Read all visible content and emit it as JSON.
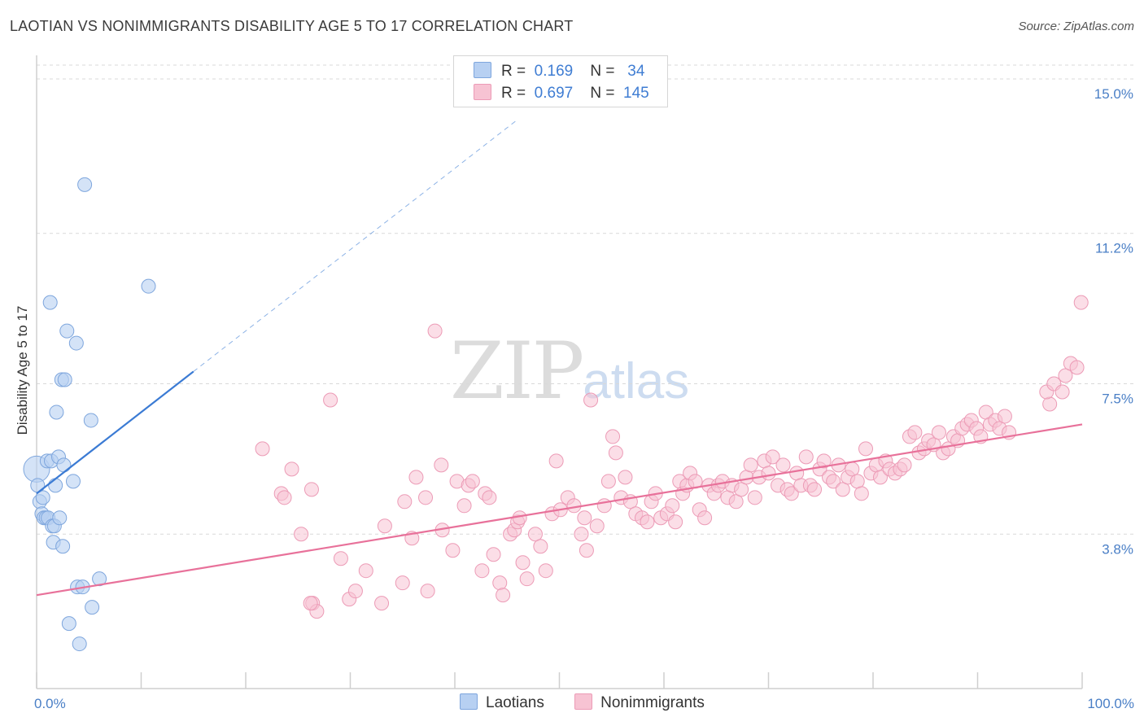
{
  "title": "LAOTIAN VS NONIMMIGRANTS DISABILITY AGE 5 TO 17 CORRELATION CHART",
  "source": "Source: ZipAtlas.com",
  "watermark": {
    "zip": "ZIP",
    "atlas": "atlas"
  },
  "legend": {
    "rows": [
      {
        "r_label": "R =",
        "r_value": "0.169",
        "n_label": "N =",
        "n_value": "34"
      },
      {
        "r_label": "R =",
        "r_value": "0.697",
        "n_label": "N =",
        "n_value": "145"
      }
    ]
  },
  "bottom_legend": [
    "Laotians",
    "Nonimmigrants"
  ],
  "colors": {
    "laotians_fill": "#b7d0f2",
    "laotians_stroke": "#7ea6dd",
    "laotians_line": "#3b7bd4",
    "nonimm_fill": "#f7c3d3",
    "nonimm_stroke": "#ec9bb6",
    "nonimm_line": "#e8719a",
    "grid": "#d9d9d9",
    "tick_label": "#4a7fc6"
  },
  "chart_data": {
    "type": "scatter",
    "title": "LAOTIAN VS NONIMMIGRANTS DISABILITY AGE 5 TO 17 CORRELATION CHART",
    "xlabel": "",
    "ylabel": "Disability Age 5 to 17",
    "xlim": [
      0,
      100
    ],
    "ylim": [
      0,
      15.5
    ],
    "x_tick_labels": [
      "0.0%",
      "100.0%"
    ],
    "y_ticks": [
      3.8,
      7.5,
      11.2,
      15.0
    ],
    "y_tick_labels": [
      "3.8%",
      "7.5%",
      "11.2%",
      "15.0%"
    ],
    "grid": "horizontal dashed",
    "series": [
      {
        "name": "Laotians",
        "r": 0.169,
        "n": 34,
        "points": [
          [
            0.0,
            5.4
          ],
          [
            0.1,
            5.0
          ],
          [
            0.3,
            4.6
          ],
          [
            0.5,
            4.3
          ],
          [
            0.6,
            4.7
          ],
          [
            0.7,
            4.2
          ],
          [
            0.9,
            4.2
          ],
          [
            1.0,
            5.6
          ],
          [
            1.1,
            4.2
          ],
          [
            1.3,
            9.5
          ],
          [
            1.4,
            5.6
          ],
          [
            1.5,
            4.0
          ],
          [
            1.6,
            3.6
          ],
          [
            1.7,
            4.0
          ],
          [
            1.8,
            5.0
          ],
          [
            1.9,
            6.8
          ],
          [
            2.1,
            5.7
          ],
          [
            2.2,
            4.2
          ],
          [
            2.4,
            7.6
          ],
          [
            2.5,
            3.5
          ],
          [
            2.6,
            5.5
          ],
          [
            2.7,
            7.6
          ],
          [
            2.9,
            8.8
          ],
          [
            3.1,
            1.6
          ],
          [
            3.5,
            5.1
          ],
          [
            3.8,
            8.5
          ],
          [
            3.9,
            2.5
          ],
          [
            4.1,
            1.1
          ],
          [
            4.4,
            2.5
          ],
          [
            4.6,
            12.4
          ],
          [
            5.2,
            6.6
          ],
          [
            5.3,
            2.0
          ],
          [
            6.0,
            2.7
          ],
          [
            10.7,
            9.9
          ]
        ],
        "trendline": {
          "x": [
            0,
            15
          ],
          "y": [
            4.8,
            7.8
          ],
          "extended_to": [
            46,
            14.0
          ]
        }
      },
      {
        "name": "Nonimmigrants",
        "r": 0.697,
        "n": 145,
        "points": [
          [
            21.6,
            5.9
          ],
          [
            23.4,
            4.8
          ],
          [
            23.7,
            4.7
          ],
          [
            24.4,
            5.4
          ],
          [
            25.3,
            3.8
          ],
          [
            26.4,
            2.1
          ],
          [
            26.8,
            1.9
          ],
          [
            26.2,
            2.1
          ],
          [
            26.3,
            4.9
          ],
          [
            28.1,
            7.1
          ],
          [
            29.1,
            3.2
          ],
          [
            29.9,
            2.2
          ],
          [
            30.5,
            2.4
          ],
          [
            31.5,
            2.9
          ],
          [
            33.0,
            2.1
          ],
          [
            33.3,
            4.0
          ],
          [
            35.0,
            2.6
          ],
          [
            35.2,
            4.6
          ],
          [
            35.9,
            3.7
          ],
          [
            36.3,
            5.2
          ],
          [
            37.4,
            2.4
          ],
          [
            37.2,
            4.7
          ],
          [
            38.1,
            8.8
          ],
          [
            38.8,
            3.9
          ],
          [
            38.7,
            5.5
          ],
          [
            39.8,
            3.4
          ],
          [
            40.2,
            5.1
          ],
          [
            40.9,
            4.5
          ],
          [
            41.3,
            5.0
          ],
          [
            41.7,
            5.1
          ],
          [
            42.6,
            2.9
          ],
          [
            42.9,
            4.8
          ],
          [
            43.3,
            4.7
          ],
          [
            43.7,
            3.3
          ],
          [
            44.3,
            2.6
          ],
          [
            44.6,
            2.3
          ],
          [
            45.3,
            3.8
          ],
          [
            45.7,
            3.9
          ],
          [
            46.0,
            4.1
          ],
          [
            46.2,
            4.2
          ],
          [
            46.9,
            2.7
          ],
          [
            46.5,
            3.1
          ],
          [
            47.7,
            3.8
          ],
          [
            48.2,
            3.5
          ],
          [
            48.7,
            2.9
          ],
          [
            49.3,
            4.3
          ],
          [
            49.7,
            5.6
          ],
          [
            50.1,
            4.4
          ],
          [
            50.8,
            4.7
          ],
          [
            51.4,
            4.5
          ],
          [
            52.1,
            3.8
          ],
          [
            52.4,
            4.2
          ],
          [
            52.6,
            3.4
          ],
          [
            53.0,
            7.1
          ],
          [
            53.6,
            4.0
          ],
          [
            54.3,
            4.5
          ],
          [
            54.7,
            5.1
          ],
          [
            55.1,
            6.2
          ],
          [
            55.4,
            5.8
          ],
          [
            55.9,
            4.7
          ],
          [
            56.3,
            5.2
          ],
          [
            56.8,
            4.6
          ],
          [
            57.3,
            4.3
          ],
          [
            57.9,
            4.2
          ],
          [
            58.4,
            4.1
          ],
          [
            58.8,
            4.6
          ],
          [
            59.2,
            4.8
          ],
          [
            59.7,
            4.2
          ],
          [
            60.3,
            4.3
          ],
          [
            60.8,
            4.5
          ],
          [
            61.1,
            4.1
          ],
          [
            61.5,
            5.1
          ],
          [
            61.8,
            4.8
          ],
          [
            62.2,
            5.0
          ],
          [
            62.5,
            5.3
          ],
          [
            63.0,
            5.1
          ],
          [
            63.4,
            4.4
          ],
          [
            63.9,
            4.2
          ],
          [
            64.3,
            5.0
          ],
          [
            64.8,
            4.8
          ],
          [
            65.2,
            5.0
          ],
          [
            65.6,
            5.1
          ],
          [
            66.1,
            4.7
          ],
          [
            66.5,
            5.0
          ],
          [
            66.9,
            4.6
          ],
          [
            67.4,
            4.9
          ],
          [
            67.9,
            5.2
          ],
          [
            68.3,
            5.5
          ],
          [
            68.7,
            4.7
          ],
          [
            69.1,
            5.2
          ],
          [
            69.6,
            5.6
          ],
          [
            70.0,
            5.3
          ],
          [
            70.4,
            5.7
          ],
          [
            70.9,
            5.0
          ],
          [
            71.4,
            5.5
          ],
          [
            71.8,
            4.9
          ],
          [
            72.2,
            4.8
          ],
          [
            72.7,
            5.3
          ],
          [
            73.1,
            5.0
          ],
          [
            73.6,
            5.7
          ],
          [
            74.0,
            5.0
          ],
          [
            74.4,
            4.9
          ],
          [
            74.9,
            5.4
          ],
          [
            75.3,
            5.6
          ],
          [
            75.8,
            5.2
          ],
          [
            76.2,
            5.1
          ],
          [
            76.7,
            5.5
          ],
          [
            77.1,
            4.9
          ],
          [
            77.6,
            5.2
          ],
          [
            78.0,
            5.4
          ],
          [
            78.5,
            5.1
          ],
          [
            78.9,
            4.8
          ],
          [
            79.3,
            5.9
          ],
          [
            79.8,
            5.3
          ],
          [
            80.3,
            5.5
          ],
          [
            80.7,
            5.2
          ],
          [
            81.2,
            5.6
          ],
          [
            81.6,
            5.4
          ],
          [
            82.1,
            5.3
          ],
          [
            82.6,
            5.4
          ],
          [
            83.0,
            5.5
          ],
          [
            83.5,
            6.2
          ],
          [
            84.0,
            6.3
          ],
          [
            84.4,
            5.8
          ],
          [
            84.9,
            5.9
          ],
          [
            85.3,
            6.1
          ],
          [
            85.8,
            6.0
          ],
          [
            86.3,
            6.3
          ],
          [
            86.7,
            5.8
          ],
          [
            87.2,
            5.9
          ],
          [
            87.7,
            6.2
          ],
          [
            88.1,
            6.1
          ],
          [
            88.5,
            6.4
          ],
          [
            89.0,
            6.5
          ],
          [
            89.4,
            6.6
          ],
          [
            89.9,
            6.4
          ],
          [
            90.3,
            6.2
          ],
          [
            90.8,
            6.8
          ],
          [
            91.2,
            6.5
          ],
          [
            91.7,
            6.6
          ],
          [
            92.1,
            6.4
          ],
          [
            92.6,
            6.7
          ],
          [
            93.0,
            6.3
          ],
          [
            96.9,
            7.0
          ],
          [
            96.6,
            7.3
          ],
          [
            97.3,
            7.5
          ],
          [
            98.1,
            7.3
          ],
          [
            98.4,
            7.7
          ],
          [
            98.9,
            8.0
          ],
          [
            99.5,
            7.9
          ],
          [
            99.9,
            9.5
          ]
        ],
        "trendline": {
          "x": [
            0,
            100
          ],
          "y": [
            2.3,
            6.5
          ]
        }
      }
    ]
  }
}
